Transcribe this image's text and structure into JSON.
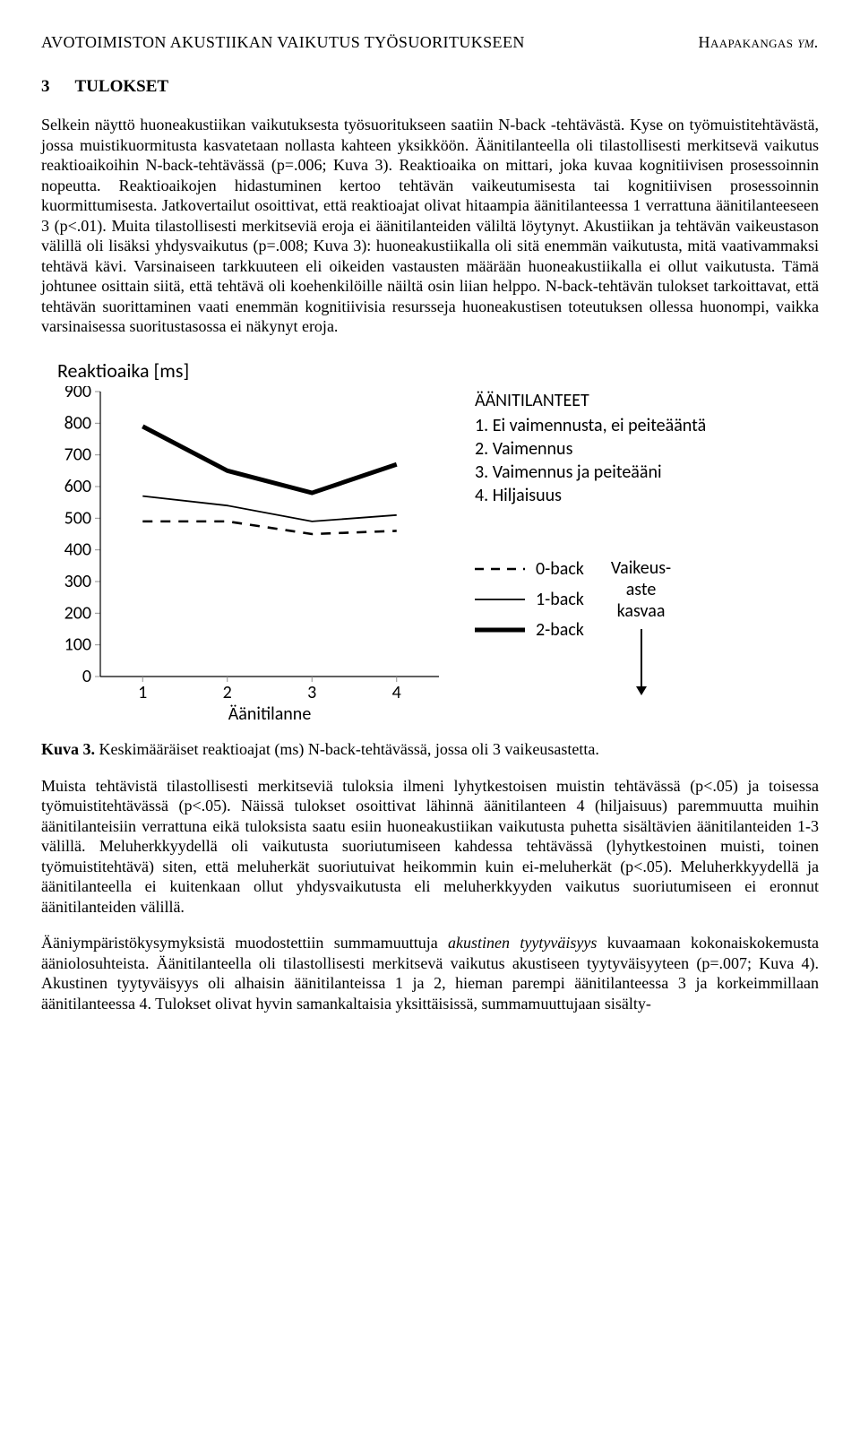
{
  "runhead": {
    "left": "AVOTOIMISTON AKUSTIIKAN VAIKUTUS TYÖSUORITUKSEEN",
    "right_name": "Haapakangas",
    "right_suffix": "ym."
  },
  "section": {
    "num": "3",
    "title": "TULOKSET"
  },
  "para1": "Selkein näyttö huoneakustiikan vaikutuksesta työsuoritukseen saatiin N-back -tehtävästä. Kyse on työmuistitehtävästä, jossa muistikuormitusta kasvatetaan nollasta kahteen yksikköön. Äänitilanteella oli tilastollisesti merkitsevä vaikutus reaktioaikoihin N-back-tehtävässä (p=.006; Kuva 3). Reaktioaika on mittari, joka kuvaa kognitiivisen prosessoinnin nopeutta. Reaktioaikojen hidastuminen kertoo tehtävän vaikeutumisesta tai kognitiivisen prosessoinnin kuormittumisesta. Jatkovertailut osoittivat, että reaktioajat olivat hitaampia äänitilanteessa 1 verrattuna äänitilanteeseen 3 (p<.01). Muita tilastollisesti merkitseviä eroja ei äänitilanteiden väliltä löytynyt. Akustiikan ja tehtävän vaikeustason välillä oli lisäksi yhdysvaikutus (p=.008; Kuva 3): huoneakustiikalla oli sitä enemmän vaikutusta, mitä vaativammaksi tehtävä kävi. Varsinaiseen tarkkuuteen eli oikeiden vastausten määrään huoneakustiikalla ei ollut vaikutusta. Tämä johtunee osittain siitä, että tehtävä oli koehenkilöille näiltä osin liian helppo. N-back-tehtävän tulokset tarkoittavat, että tehtävän suorittaminen vaati enemmän kognitiivisia resursseja huoneakustisen toteutuksen ollessa huonompi, vaikka varsinaisessa suoritustasossa ei näkynyt eroja.",
  "chart": {
    "type": "line",
    "title": "Reaktioaika [ms]",
    "x_ticks": [
      "1",
      "2",
      "3",
      "4"
    ],
    "x_label": "Äänitilanne",
    "y_ticks": [
      0,
      100,
      200,
      300,
      400,
      500,
      600,
      700,
      800,
      900
    ],
    "ylim": [
      0,
      900
    ],
    "series": {
      "back0": {
        "label": "0-back",
        "style": "dashed",
        "width": 2.6,
        "color": "#000000",
        "values": [
          490,
          490,
          450,
          460
        ]
      },
      "back1": {
        "label": "1-back",
        "style": "solid",
        "width": 1.8,
        "color": "#000000",
        "values": [
          570,
          540,
          490,
          510
        ]
      },
      "back2": {
        "label": "2-back",
        "style": "solid",
        "width": 5.0,
        "color": "#000000",
        "values": [
          790,
          650,
          580,
          670
        ]
      }
    },
    "plot_bg": "#ffffff",
    "axis_color": "#000000",
    "tick_color": "#8f8f8f",
    "label_fontsize": 20,
    "tick_fontsize": 20
  },
  "conditions": {
    "title": "ÄÄNITILANTEET",
    "items": [
      "1. Ei vaimennusta, ei peiteääntä",
      "2. Vaimennus",
      "3. Vaimennus ja peiteääni",
      "4. Hiljaisuus"
    ]
  },
  "difficulty_arrow": {
    "line1": "Vaikeus-",
    "line2": "aste",
    "line3": "kasvaa"
  },
  "caption": {
    "label": "Kuva 3.",
    "text": " Keskimääräiset reaktioajat (ms) N-back-tehtävässä, jossa oli 3 vaikeusastetta."
  },
  "para2": "Muista tehtävistä tilastollisesti merkitseviä tuloksia ilmeni lyhytkestoisen muistin tehtävässä (p<.05) ja toisessa työmuistitehtävässä (p<.05). Näissä tulokset osoittivat lähinnä äänitilanteen 4 (hiljaisuus) paremmuutta muihin äänitilanteisiin verrattuna eikä tuloksista saatu esiin huoneakustiikan vaikutusta puhetta sisältävien äänitilanteiden 1-3 välillä. Meluherkkyydellä oli vaikutusta suoriutumiseen kahdessa tehtävässä (lyhytkestoinen muisti, toinen työmuistitehtävä) siten, että meluherkät suoriutuivat heikommin kuin ei-meluherkät (p<.05). Meluherkkyydellä ja äänitilanteella ei kuitenkaan ollut yhdysvaikutusta eli meluherkkyyden vaikutus suoriutumiseen ei eronnut äänitilanteiden välillä.",
  "para3_prefix": "Ääniympäristökysymyksistä muodostettiin summamuuttuja ",
  "para3_em": "akustinen tyytyväisyys",
  "para3_suffix": " kuvaamaan kokonaiskokemusta ääniolosuhteista. Äänitilanteella oli tilastollisesti merkitsevä vaikutus akustiseen tyytyväisyyteen (p=.007; Kuva 4). Akustinen tyytyväisyys oli alhaisin äänitilanteissa 1 ja 2, hieman parempi äänitilanteessa 3 ja korkeimmillaan äänitilanteessa 4. Tulokset olivat hyvin samankaltaisia yksittäisissä, summamuuttujaan sisälty-"
}
